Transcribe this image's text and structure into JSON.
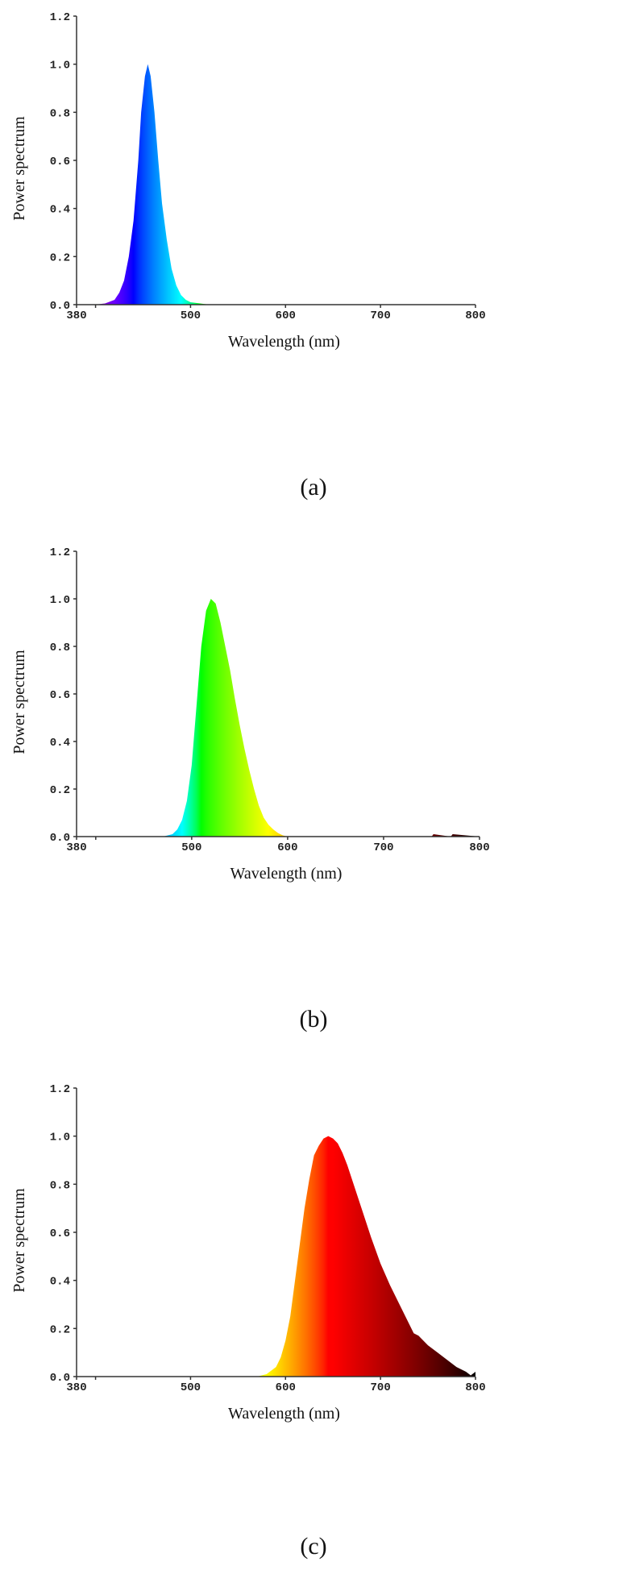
{
  "figure": {
    "panels": [
      {
        "caption": "(a)"
      },
      {
        "caption": "(b)"
      },
      {
        "caption": "(c)"
      }
    ]
  },
  "chart_data": [
    {
      "type": "area",
      "xlabel": "Wavelength (nm)",
      "ylabel": "Power spectrum",
      "xlim": [
        380,
        800
      ],
      "ylim": [
        0,
        1.2
      ],
      "xticks": [
        "380",
        "500",
        "600",
        "700",
        "800"
      ],
      "yticks": [
        "0.0",
        "0.2",
        "0.4",
        "0.6",
        "0.8",
        "1.0",
        "1.2"
      ],
      "grid": false,
      "fill": "spectral-gradient",
      "series": [
        {
          "x": [
            380,
            400,
            410,
            420,
            425,
            430,
            435,
            440,
            445,
            448,
            452,
            455,
            458,
            462,
            466,
            470,
            475,
            480,
            485,
            490,
            495,
            500,
            510,
            520,
            540,
            600,
            700,
            800
          ],
          "values": [
            0.0,
            0.0,
            0.005,
            0.02,
            0.05,
            0.1,
            0.2,
            0.35,
            0.6,
            0.8,
            0.95,
            1.0,
            0.95,
            0.8,
            0.6,
            0.42,
            0.27,
            0.15,
            0.08,
            0.04,
            0.02,
            0.01,
            0.005,
            0.0,
            0.0,
            0.0,
            0.0,
            0.0
          ]
        }
      ]
    },
    {
      "type": "area",
      "xlabel": "Wavelength (nm)",
      "ylabel": "Power spectrum",
      "xlim": [
        380,
        800
      ],
      "ylim": [
        0,
        1.2
      ],
      "xticks": [
        "380",
        "500",
        "600",
        "700",
        "800"
      ],
      "yticks": [
        "0.0",
        "0.2",
        "0.4",
        "0.6",
        "0.8",
        "1.0",
        "1.2"
      ],
      "grid": false,
      "fill": "spectral-gradient",
      "series": [
        {
          "x": [
            380,
            470,
            480,
            485,
            490,
            495,
            500,
            505,
            510,
            515,
            520,
            525,
            530,
            535,
            540,
            545,
            550,
            555,
            560,
            565,
            570,
            575,
            580,
            585,
            590,
            595,
            600,
            610,
            750,
            752,
            770,
            772,
            800
          ],
          "values": [
            0.0,
            0.0,
            0.01,
            0.03,
            0.07,
            0.15,
            0.3,
            0.55,
            0.8,
            0.95,
            1.0,
            0.98,
            0.9,
            0.8,
            0.7,
            0.58,
            0.47,
            0.37,
            0.28,
            0.2,
            0.13,
            0.08,
            0.05,
            0.03,
            0.015,
            0.005,
            0.0,
            0.0,
            0.0,
            0.01,
            0.0,
            0.01,
            0.0
          ]
        }
      ]
    },
    {
      "type": "area",
      "xlabel": "Wavelength (nm)",
      "ylabel": "Power spectrum",
      "xlim": [
        380,
        800
      ],
      "ylim": [
        0,
        1.2
      ],
      "xticks": [
        "380",
        "500",
        "600",
        "700",
        "800"
      ],
      "yticks": [
        "0.0",
        "0.2",
        "0.4",
        "0.6",
        "0.8",
        "1.0",
        "1.2"
      ],
      "grid": false,
      "fill": "spectral-gradient",
      "series": [
        {
          "x": [
            380,
            570,
            580,
            590,
            595,
            600,
            605,
            610,
            615,
            620,
            625,
            630,
            635,
            640,
            645,
            650,
            655,
            660,
            665,
            670,
            680,
            690,
            700,
            710,
            720,
            730,
            735,
            740,
            750,
            760,
            770,
            780,
            790,
            795,
            800
          ],
          "values": [
            0.0,
            0.0,
            0.01,
            0.04,
            0.08,
            0.15,
            0.25,
            0.4,
            0.55,
            0.7,
            0.82,
            0.92,
            0.96,
            0.99,
            1.0,
            0.99,
            0.97,
            0.93,
            0.88,
            0.82,
            0.7,
            0.58,
            0.47,
            0.38,
            0.3,
            0.22,
            0.18,
            0.17,
            0.13,
            0.1,
            0.07,
            0.04,
            0.02,
            0.005,
            0.02
          ]
        }
      ]
    }
  ]
}
